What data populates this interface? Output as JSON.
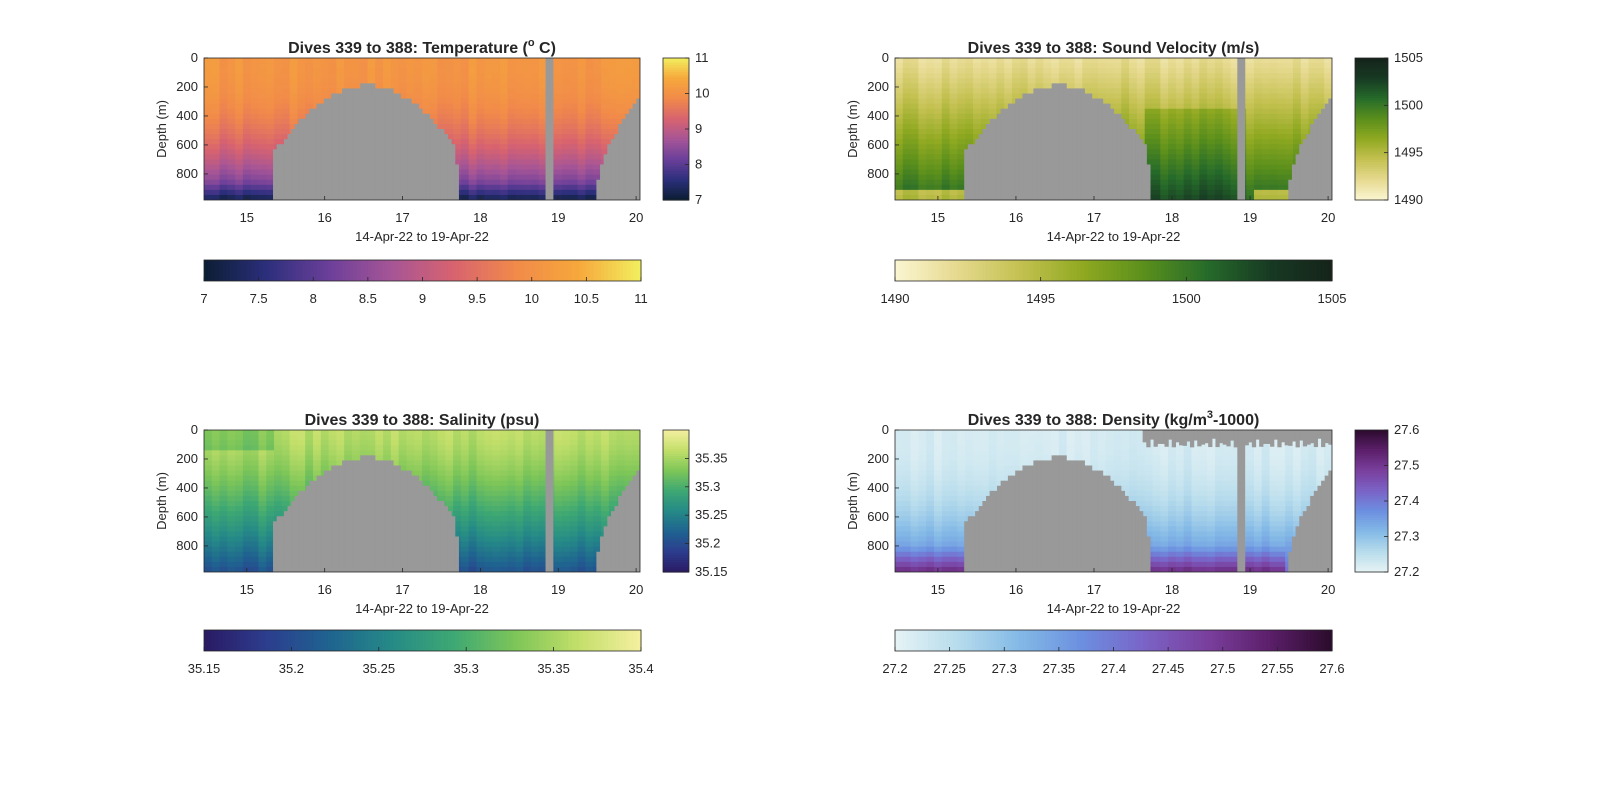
{
  "chart_data": [
    {
      "type": "heatmap",
      "variable": "temperature",
      "title_main": "Dives 339 to 388: Temperature (",
      "title_sup": "o",
      "title_tail": " C)",
      "xlabel": "14-Apr-22 to 19-Apr-22",
      "ylabel": "Depth (m)",
      "xlim": [
        14.45,
        20.05
      ],
      "ylim": [
        0,
        980
      ],
      "xticks": [
        "15",
        "16",
        "17",
        "18",
        "19",
        "20"
      ],
      "yticks": [
        "0",
        "200",
        "400",
        "600",
        "800"
      ],
      "clim": [
        7,
        11
      ],
      "colormap": [
        "#0b1e33",
        "#2c2f7c",
        "#6b3f9a",
        "#a65596",
        "#d8636f",
        "#f18a4a",
        "#f6a83b",
        "#f2ef5f"
      ],
      "side_colorbar_ticks": [
        "7",
        "8",
        "9",
        "10",
        "11"
      ],
      "bottom_colorbar_ticks": [
        "7",
        "7.5",
        "8",
        "8.5",
        "9",
        "9.5",
        "10",
        "10.5",
        "11"
      ],
      "profile_points_x": [
        14.45,
        14.75,
        15.05,
        15.35,
        15.65,
        15.95,
        16.25,
        16.55,
        16.85,
        17.15,
        17.45,
        17.75,
        18.05,
        18.35,
        18.65,
        19.0,
        19.3,
        19.6,
        19.9
      ],
      "profile_points_depth": [
        0,
        0,
        0,
        0,
        0,
        0,
        0,
        0,
        0,
        0,
        0,
        0,
        0,
        0,
        0,
        0,
        0,
        0,
        0
      ],
      "surface_value": 10.1,
      "deep_value": 7.6
    },
    {
      "type": "heatmap",
      "variable": "sound_velocity",
      "title_main": "Dives 339 to 388: Sound Velocity (m/s)",
      "title_sup": "",
      "title_tail": "",
      "xlabel": "14-Apr-22 to 19-Apr-22",
      "ylabel": "Depth (m)",
      "xlim": [
        14.45,
        20.05
      ],
      "ylim": [
        0,
        980
      ],
      "xticks": [
        "15",
        "16",
        "17",
        "18",
        "19",
        "20"
      ],
      "yticks": [
        "0",
        "200",
        "400",
        "600",
        "800"
      ],
      "clim": [
        1490,
        1505
      ],
      "colormap": [
        "#fbf6d2",
        "#e6d98f",
        "#c4c151",
        "#90a921",
        "#5a8f1c",
        "#266b2a",
        "#173a23",
        "#15231a"
      ],
      "side_colorbar_ticks": [
        "1490",
        "1495",
        "1500",
        "1505"
      ],
      "bottom_colorbar_ticks": [
        "1490",
        "1495",
        "1500",
        "1505"
      ],
      "surface_value": 1492,
      "deep_value": 1501
    },
    {
      "type": "heatmap",
      "variable": "salinity",
      "title_main": "Dives 339 to 388: Salinity (psu)",
      "title_sup": "",
      "title_tail": "",
      "xlabel": "14-Apr-22 to 19-Apr-22",
      "ylabel": "Depth (m)",
      "xlim": [
        14.45,
        20.05
      ],
      "ylim": [
        0,
        980
      ],
      "xticks": [
        "15",
        "16",
        "17",
        "18",
        "19",
        "20"
      ],
      "yticks": [
        "0",
        "200",
        "400",
        "600",
        "800"
      ],
      "clim": [
        35.15,
        35.4
      ],
      "colormap": [
        "#2a1a63",
        "#2c3d8e",
        "#1f6390",
        "#258a87",
        "#3ea873",
        "#7ec658",
        "#c3df6a",
        "#f5efa0"
      ],
      "side_colorbar_ticks": [
        "35.15",
        "35.2",
        "35.25",
        "35.3",
        "35.35"
      ],
      "bottom_colorbar_ticks": [
        "35.15",
        "35.2",
        "35.25",
        "35.3",
        "35.35",
        "35.4"
      ],
      "surface_value": 35.36,
      "deep_value": 35.2
    },
    {
      "type": "heatmap",
      "variable": "density",
      "title_main": "Dives 339 to 388: Density (kg/m",
      "title_sup": "3",
      "title_tail": "-1000)",
      "xlabel": "14-Apr-22 to 19-Apr-22",
      "ylabel": "Depth (m)",
      "xlim": [
        14.45,
        20.05
      ],
      "ylim": [
        0,
        980
      ],
      "xticks": [
        "15",
        "16",
        "17",
        "18",
        "19",
        "20"
      ],
      "yticks": [
        "0",
        "200",
        "400",
        "600",
        "800"
      ],
      "clim": [
        27.2,
        27.6
      ],
      "colormap": [
        "#e6f3f5",
        "#b7dcec",
        "#83b9e6",
        "#6c8fe0",
        "#7a63c6",
        "#7a3f9d",
        "#5c1f6a",
        "#2b0b2c"
      ],
      "side_colorbar_ticks": [
        "27.2",
        "27.3",
        "27.4",
        "27.5",
        "27.6"
      ],
      "bottom_colorbar_ticks": [
        "27.2",
        "27.25",
        "27.3",
        "27.35",
        "27.4",
        "27.45",
        "27.5",
        "27.55",
        "27.6"
      ],
      "surface_value": 27.22,
      "deep_value": 27.42
    }
  ],
  "terrain": {
    "color": "#999999",
    "gap_x": [
      18.86,
      18.95
    ],
    "seamount_x": [
      15.35,
      17.72
    ],
    "seamount_top_depth": 190,
    "seamount_peak_x": 16.55,
    "right_terrain_start_x": 19.48,
    "right_terrain_top_depth": 270
  }
}
